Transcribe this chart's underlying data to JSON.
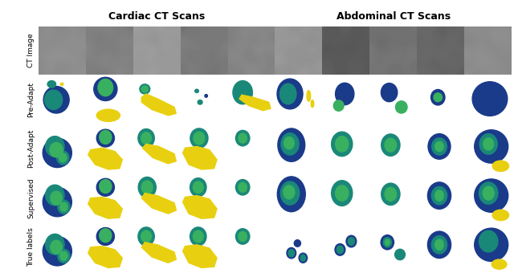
{
  "title_cardiac": "Cardiac CT Scans",
  "title_abdominal": "Abdominal CT Scans",
  "row_labels": [
    "CT Image",
    "Pre-Adapt",
    "Post-Adapt",
    "Supervised",
    "True labels"
  ],
  "n_cols": 10,
  "n_rows": 5,
  "purple": "#3a0068",
  "dark_blue": "#1a3a8a",
  "teal": "#1a8878",
  "green": "#38b060",
  "yellow": "#e8d010",
  "label_fontsize": 6.5,
  "title_fontsize": 9
}
